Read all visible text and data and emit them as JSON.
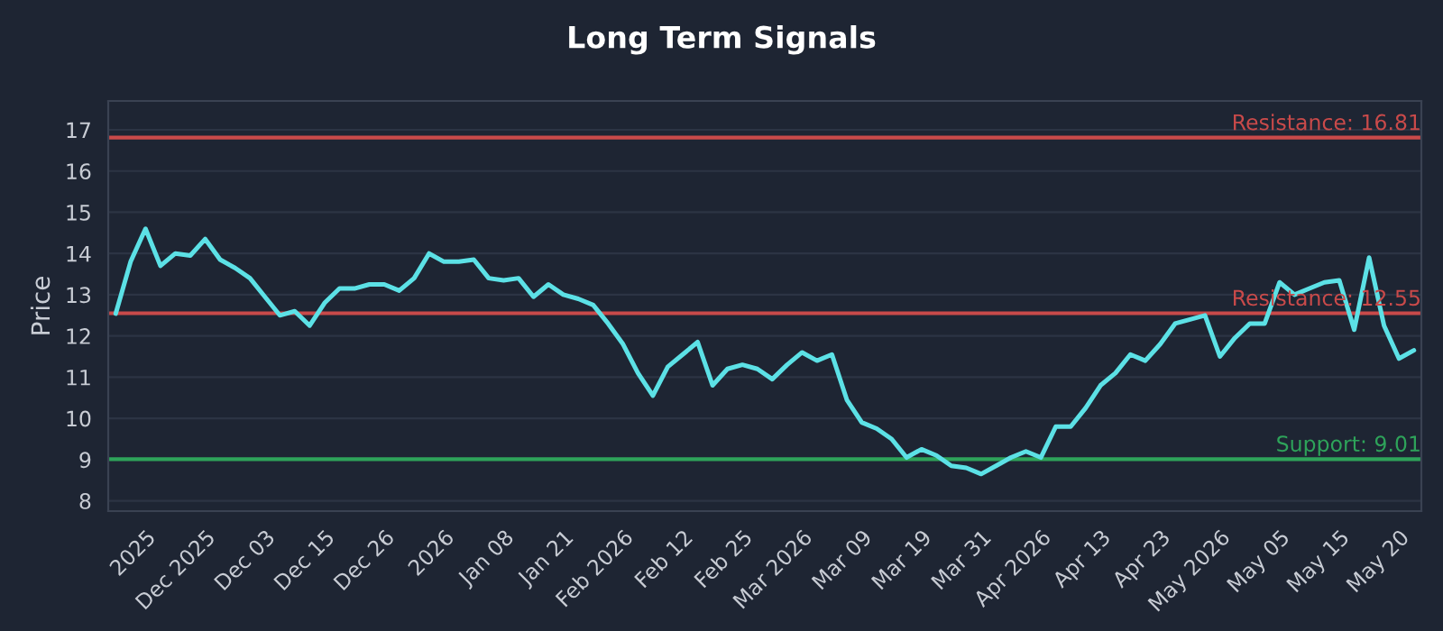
{
  "chart_data": {
    "type": "line",
    "title": "Long Term Signals",
    "ylabel": "Price",
    "categories": [
      null,
      null,
      "2025",
      null,
      null,
      null,
      "Dec 2025",
      null,
      null,
      null,
      "Dec 03",
      null,
      null,
      null,
      "Dec 15",
      null,
      null,
      null,
      "Dec 26",
      null,
      null,
      null,
      "2026",
      null,
      null,
      null,
      "Jan 08",
      null,
      null,
      null,
      "Jan 21",
      null,
      null,
      null,
      "Feb 2026",
      null,
      null,
      null,
      "Feb 12",
      null,
      null,
      null,
      "Feb 25",
      null,
      null,
      null,
      "Mar 2026",
      null,
      null,
      null,
      "Mar 09",
      null,
      null,
      null,
      "Mar 19",
      null,
      null,
      null,
      "Mar 31",
      null,
      null,
      null,
      "Apr 2026",
      null,
      null,
      null,
      "Apr 13",
      null,
      null,
      null,
      "Apr 23",
      null,
      null,
      null,
      "May 2026",
      null,
      null,
      null,
      "May 05",
      null,
      null,
      null,
      "May 15",
      null,
      null,
      null,
      "May 20",
      null
    ],
    "series": [
      {
        "color": "#5ce1e6",
        "values": [
          12.54,
          13.8,
          14.6,
          13.7,
          14.0,
          13.95,
          14.35,
          13.85,
          13.65,
          13.4,
          12.95,
          12.5,
          12.6,
          12.25,
          12.8,
          13.15,
          13.15,
          13.25,
          13.25,
          13.1,
          13.4,
          14.0,
          13.8,
          13.8,
          13.85,
          13.4,
          13.35,
          13.4,
          12.95,
          13.25,
          13.0,
          12.9,
          12.75,
          12.3,
          11.8,
          11.1,
          10.55,
          11.25,
          11.55,
          11.85,
          10.8,
          11.2,
          11.3,
          11.2,
          10.95,
          11.3,
          11.6,
          11.4,
          11.55,
          10.45,
          9.9,
          9.75,
          9.5,
          9.05,
          9.25,
          9.1,
          8.85,
          8.8,
          8.65,
          8.85,
          9.05,
          9.2,
          9.05,
          9.8,
          9.8,
          10.25,
          10.8,
          11.1,
          11.55,
          11.4,
          11.8,
          12.3,
          12.4,
          12.5,
          11.5,
          11.95,
          12.3,
          12.3,
          13.3,
          13.0,
          13.15,
          13.3,
          13.35,
          12.15,
          13.9,
          12.25,
          11.45,
          11.65
        ]
      }
    ],
    "ylim": [
      7.75,
      17.7
    ],
    "yticks": [
      8,
      9,
      10,
      11,
      12,
      13,
      14,
      15,
      16,
      17
    ],
    "grid": "y",
    "line_style": "solid",
    "ref_lines": [
      {
        "axis": "y",
        "value": 16.81,
        "label": "Resistance: 16.81",
        "color": "#c94a4a"
      },
      {
        "axis": "y",
        "value": 12.55,
        "label": "Resistance: 12.55",
        "color": "#c94a4a"
      },
      {
        "axis": "y",
        "value": 9.01,
        "label": "Support: 9.01",
        "color": "#2ea35a"
      }
    ]
  }
}
